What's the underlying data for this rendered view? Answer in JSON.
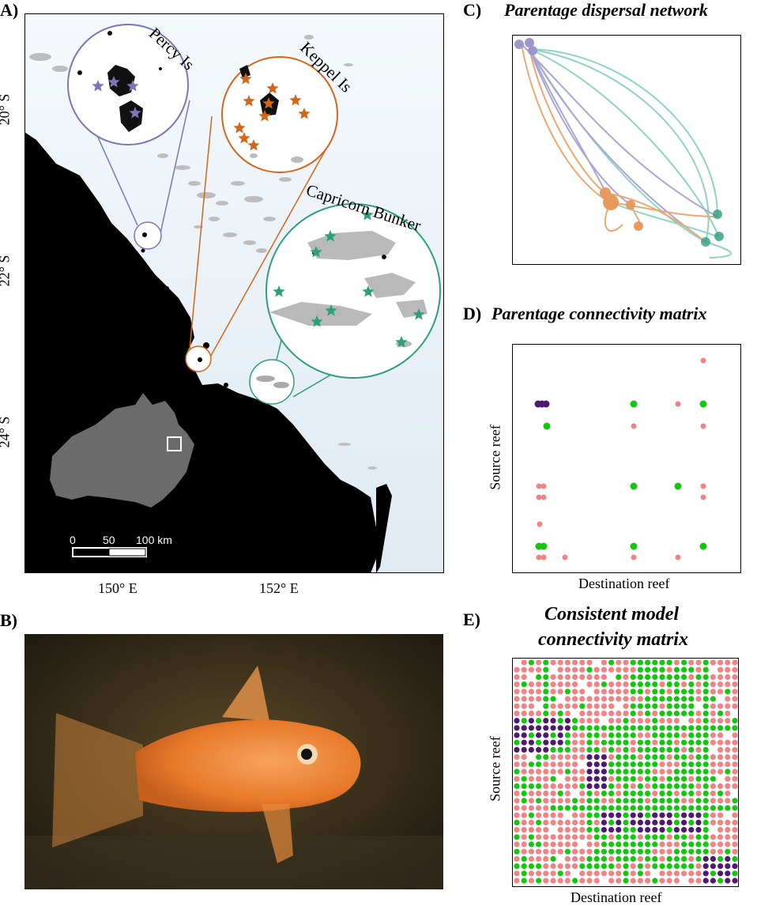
{
  "panel_a": {
    "label": "A)",
    "y_ticks": [
      "20° S",
      "22° S",
      "24° S"
    ],
    "x_ticks": [
      "150° E",
      "152° E"
    ],
    "insets": [
      "Percy Is",
      "Keppel Is",
      "Capricorn Bunker"
    ],
    "scale_bar": [
      "0",
      "50",
      "100 km"
    ],
    "colors": {
      "percy": "#7b76b8",
      "keppel": "#d2671c",
      "capricorn": "#2e9e7d",
      "sea_top": "#f5f9fc",
      "sea_bottom": "#dfeaf3",
      "land": "#000000",
      "reef": "#b9b9b9"
    }
  },
  "panel_b": {
    "label": "B)",
    "image": "photo of an orange goby fish in an aquarium"
  },
  "panel_c": {
    "label": "C)",
    "title": "Parentage dispersal network",
    "colors": {
      "percy": "#9c97cb",
      "keppel": "#e8995c",
      "capricorn": "#7ccdb6"
    }
  },
  "panel_d": {
    "label": "D)",
    "title": "Parentage connectivity matrix",
    "xlabel": "Destination reef",
    "ylabel": "Source reef",
    "colors": {
      "purple": "#4f1970",
      "green": "#13c70f",
      "pink": "#f08484"
    }
  },
  "panel_e": {
    "label": "E)",
    "title_line1": "Consistent model",
    "title_line2": "connectivity matrix",
    "xlabel": "Destination reef",
    "ylabel": "Source reef"
  }
}
